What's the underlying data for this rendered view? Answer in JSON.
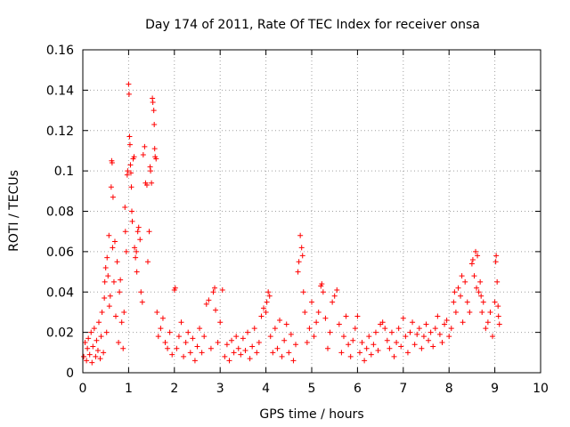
{
  "chart_data": {
    "type": "scatter",
    "title": "Day 174 of 2011, Rate Of TEC Index for receiver onsa",
    "xlabel": "GPS time / hours",
    "ylabel": "ROTI / TECUs",
    "xlim": [
      0,
      10
    ],
    "ylim": [
      0,
      0.16
    ],
    "x_ticks": [
      "0",
      "1",
      "2",
      "3",
      "4",
      "5",
      "6",
      "7",
      "8",
      "9",
      "10"
    ],
    "y_ticks": [
      "0",
      "0.02",
      "0.04",
      "0.06",
      "0.08",
      "0.1",
      "0.12",
      "0.14",
      "0.16"
    ],
    "grid": true,
    "marker": "plus",
    "color": "#ff0000",
    "series": [
      {
        "points": [
          [
            0.02,
            0.008
          ],
          [
            0.05,
            0.015
          ],
          [
            0.08,
            0.006
          ],
          [
            0.1,
            0.012
          ],
          [
            0.12,
            0.017
          ],
          [
            0.15,
            0.009
          ],
          [
            0.18,
            0.02
          ],
          [
            0.2,
            0.005
          ],
          [
            0.22,
            0.013
          ],
          [
            0.25,
            0.022
          ],
          [
            0.28,
            0.008
          ],
          [
            0.3,
            0.016
          ],
          [
            0.33,
            0.011
          ],
          [
            0.35,
            0.025
          ],
          [
            0.38,
            0.007
          ],
          [
            0.4,
            0.018
          ],
          [
            0.42,
            0.03
          ],
          [
            0.45,
            0.01
          ],
          [
            0.47,
            0.037
          ],
          [
            0.48,
            0.045
          ],
          [
            0.5,
            0.052
          ],
          [
            0.52,
            0.02
          ],
          [
            0.53,
            0.057
          ],
          [
            0.55,
            0.048
          ],
          [
            0.57,
            0.068
          ],
          [
            0.58,
            0.033
          ],
          [
            0.6,
            0.038
          ],
          [
            0.62,
            0.092
          ],
          [
            0.63,
            0.105
          ],
          [
            0.64,
            0.104
          ],
          [
            0.65,
            0.062
          ],
          [
            0.66,
            0.087
          ],
          [
            0.68,
            0.045
          ],
          [
            0.7,
            0.065
          ],
          [
            0.72,
            0.028
          ],
          [
            0.75,
            0.055
          ],
          [
            0.78,
            0.015
          ],
          [
            0.8,
            0.04
          ],
          [
            0.82,
            0.046
          ],
          [
            0.85,
            0.025
          ],
          [
            0.88,
            0.012
          ],
          [
            0.9,
            0.03
          ],
          [
            0.92,
            0.082
          ],
          [
            0.93,
            0.07
          ],
          [
            0.95,
            0.06
          ],
          [
            0.97,
            0.098
          ],
          [
            0.98,
            0.1
          ],
          [
            1.0,
            0.143
          ],
          [
            1.01,
            0.138
          ],
          [
            1.02,
            0.117
          ],
          [
            1.03,
            0.113
          ],
          [
            1.04,
            0.103
          ],
          [
            1.05,
            0.099
          ],
          [
            1.06,
            0.092
          ],
          [
            1.07,
            0.08
          ],
          [
            1.08,
            0.075
          ],
          [
            1.1,
            0.106
          ],
          [
            1.12,
            0.107
          ],
          [
            1.13,
            0.062
          ],
          [
            1.15,
            0.057
          ],
          [
            1.17,
            0.06
          ],
          [
            1.18,
            0.05
          ],
          [
            1.2,
            0.07
          ],
          [
            1.22,
            0.072
          ],
          [
            1.25,
            0.066
          ],
          [
            1.27,
            0.04
          ],
          [
            1.3,
            0.035
          ],
          [
            1.32,
            0.108
          ],
          [
            1.35,
            0.112
          ],
          [
            1.37,
            0.094
          ],
          [
            1.4,
            0.093
          ],
          [
            1.42,
            0.055
          ],
          [
            1.45,
            0.07
          ],
          [
            1.47,
            0.102
          ],
          [
            1.48,
            0.1
          ],
          [
            1.5,
            0.094
          ],
          [
            1.52,
            0.136
          ],
          [
            1.53,
            0.134
          ],
          [
            1.55,
            0.13
          ],
          [
            1.56,
            0.123
          ],
          [
            1.57,
            0.111
          ],
          [
            1.58,
            0.107
          ],
          [
            1.6,
            0.106
          ],
          [
            1.62,
            0.03
          ],
          [
            1.65,
            0.018
          ],
          [
            1.7,
            0.022
          ],
          [
            1.75,
            0.027
          ],
          [
            1.8,
            0.015
          ],
          [
            1.85,
            0.012
          ],
          [
            1.9,
            0.02
          ],
          [
            1.95,
            0.009
          ],
          [
            2.0,
            0.041
          ],
          [
            2.02,
            0.042
          ],
          [
            2.05,
            0.012
          ],
          [
            2.1,
            0.018
          ],
          [
            2.15,
            0.025
          ],
          [
            2.2,
            0.008
          ],
          [
            2.25,
            0.015
          ],
          [
            2.3,
            0.02
          ],
          [
            2.35,
            0.01
          ],
          [
            2.4,
            0.017
          ],
          [
            2.45,
            0.006
          ],
          [
            2.5,
            0.013
          ],
          [
            2.55,
            0.022
          ],
          [
            2.6,
            0.01
          ],
          [
            2.65,
            0.018
          ],
          [
            2.7,
            0.034
          ],
          [
            2.75,
            0.036
          ],
          [
            2.8,
            0.012
          ],
          [
            2.85,
            0.04
          ],
          [
            2.88,
            0.042
          ],
          [
            2.9,
            0.031
          ],
          [
            2.95,
            0.015
          ],
          [
            3.0,
            0.025
          ],
          [
            3.05,
            0.041
          ],
          [
            3.1,
            0.008
          ],
          [
            3.15,
            0.014
          ],
          [
            3.2,
            0.006
          ],
          [
            3.25,
            0.016
          ],
          [
            3.3,
            0.01
          ],
          [
            3.35,
            0.018
          ],
          [
            3.4,
            0.012
          ],
          [
            3.45,
            0.009
          ],
          [
            3.5,
            0.017
          ],
          [
            3.55,
            0.011
          ],
          [
            3.6,
            0.02
          ],
          [
            3.65,
            0.007
          ],
          [
            3.7,
            0.013
          ],
          [
            3.75,
            0.022
          ],
          [
            3.8,
            0.01
          ],
          [
            3.85,
            0.015
          ],
          [
            3.9,
            0.028
          ],
          [
            3.95,
            0.032
          ],
          [
            4.0,
            0.03
          ],
          [
            4.02,
            0.035
          ],
          [
            4.05,
            0.04
          ],
          [
            4.08,
            0.038
          ],
          [
            4.1,
            0.018
          ],
          [
            4.15,
            0.01
          ],
          [
            4.2,
            0.022
          ],
          [
            4.25,
            0.012
          ],
          [
            4.3,
            0.026
          ],
          [
            4.35,
            0.008
          ],
          [
            4.4,
            0.016
          ],
          [
            4.45,
            0.024
          ],
          [
            4.5,
            0.01
          ],
          [
            4.55,
            0.019
          ],
          [
            4.6,
            0.006
          ],
          [
            4.65,
            0.014
          ],
          [
            4.7,
            0.05
          ],
          [
            4.72,
            0.055
          ],
          [
            4.75,
            0.068
          ],
          [
            4.78,
            0.062
          ],
          [
            4.8,
            0.058
          ],
          [
            4.82,
            0.04
          ],
          [
            4.85,
            0.03
          ],
          [
            4.9,
            0.015
          ],
          [
            4.95,
            0.022
          ],
          [
            5.0,
            0.035
          ],
          [
            5.05,
            0.018
          ],
          [
            5.1,
            0.025
          ],
          [
            5.15,
            0.03
          ],
          [
            5.2,
            0.043
          ],
          [
            5.22,
            0.044
          ],
          [
            5.25,
            0.04
          ],
          [
            5.3,
            0.027
          ],
          [
            5.35,
            0.012
          ],
          [
            5.4,
            0.02
          ],
          [
            5.45,
            0.035
          ],
          [
            5.5,
            0.038
          ],
          [
            5.55,
            0.041
          ],
          [
            5.6,
            0.024
          ],
          [
            5.65,
            0.01
          ],
          [
            5.7,
            0.018
          ],
          [
            5.75,
            0.028
          ],
          [
            5.8,
            0.014
          ],
          [
            5.85,
            0.008
          ],
          [
            5.9,
            0.016
          ],
          [
            5.95,
            0.022
          ],
          [
            6.0,
            0.028
          ],
          [
            6.05,
            0.01
          ],
          [
            6.1,
            0.015
          ],
          [
            6.15,
            0.006
          ],
          [
            6.2,
            0.012
          ],
          [
            6.25,
            0.018
          ],
          [
            6.3,
            0.009
          ],
          [
            6.35,
            0.014
          ],
          [
            6.4,
            0.02
          ],
          [
            6.45,
            0.011
          ],
          [
            6.5,
            0.024
          ],
          [
            6.55,
            0.025
          ],
          [
            6.6,
            0.022
          ],
          [
            6.65,
            0.016
          ],
          [
            6.7,
            0.012
          ],
          [
            6.75,
            0.02
          ],
          [
            6.8,
            0.008
          ],
          [
            6.85,
            0.015
          ],
          [
            6.9,
            0.022
          ],
          [
            6.95,
            0.013
          ],
          [
            7.0,
            0.027
          ],
          [
            7.05,
            0.018
          ],
          [
            7.1,
            0.01
          ],
          [
            7.15,
            0.02
          ],
          [
            7.2,
            0.025
          ],
          [
            7.25,
            0.014
          ],
          [
            7.3,
            0.019
          ],
          [
            7.35,
            0.022
          ],
          [
            7.4,
            0.012
          ],
          [
            7.45,
            0.018
          ],
          [
            7.5,
            0.024
          ],
          [
            7.55,
            0.016
          ],
          [
            7.6,
            0.02
          ],
          [
            7.65,
            0.013
          ],
          [
            7.7,
            0.022
          ],
          [
            7.75,
            0.028
          ],
          [
            7.8,
            0.019
          ],
          [
            7.85,
            0.015
          ],
          [
            7.9,
            0.024
          ],
          [
            7.95,
            0.026
          ],
          [
            8.0,
            0.018
          ],
          [
            8.05,
            0.022
          ],
          [
            8.1,
            0.035
          ],
          [
            8.12,
            0.04
          ],
          [
            8.15,
            0.03
          ],
          [
            8.2,
            0.042
          ],
          [
            8.25,
            0.038
          ],
          [
            8.28,
            0.048
          ],
          [
            8.3,
            0.025
          ],
          [
            8.35,
            0.045
          ],
          [
            8.4,
            0.035
          ],
          [
            8.45,
            0.03
          ],
          [
            8.5,
            0.054
          ],
          [
            8.52,
            0.056
          ],
          [
            8.55,
            0.048
          ],
          [
            8.58,
            0.06
          ],
          [
            8.6,
            0.042
          ],
          [
            8.62,
            0.058
          ],
          [
            8.65,
            0.04
          ],
          [
            8.68,
            0.045
          ],
          [
            8.7,
            0.038
          ],
          [
            8.72,
            0.03
          ],
          [
            8.75,
            0.035
          ],
          [
            8.8,
            0.022
          ],
          [
            8.85,
            0.025
          ],
          [
            8.9,
            0.03
          ],
          [
            8.95,
            0.018
          ],
          [
            9.0,
            0.035
          ],
          [
            9.02,
            0.055
          ],
          [
            9.03,
            0.058
          ],
          [
            9.05,
            0.045
          ],
          [
            9.07,
            0.033
          ],
          [
            9.08,
            0.028
          ],
          [
            9.1,
            0.024
          ]
        ]
      }
    ]
  }
}
